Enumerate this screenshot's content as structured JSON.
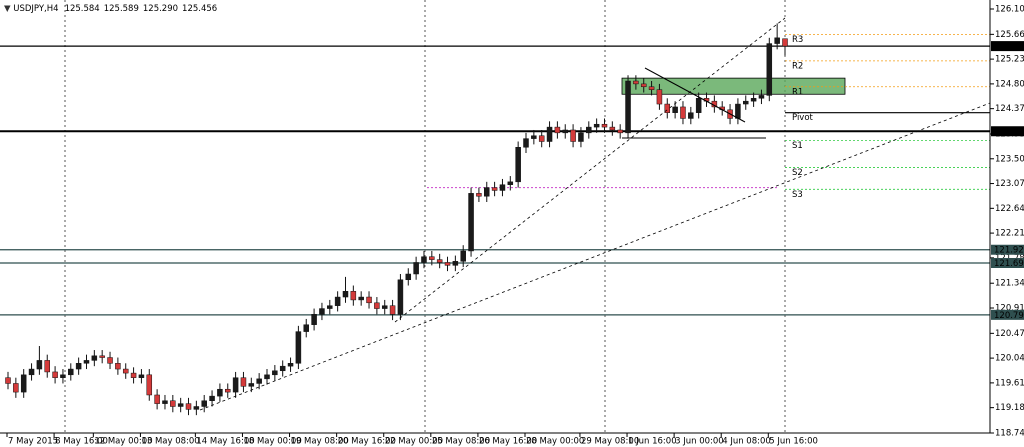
{
  "chart_data": {
    "type": "candlestick",
    "title": "USDJPY,H4",
    "quote": [
      {
        "value": 125.584,
        "label": "125.584"
      },
      {
        "value": 125.589,
        "label": "125.589"
      },
      {
        "value": 125.29,
        "label": "125.290"
      },
      {
        "value": 125.456,
        "label": "125.456"
      }
    ],
    "categories": [
      "7 May 2015",
      null,
      null,
      null,
      null,
      null,
      "8 May 16:00",
      null,
      null,
      null,
      null,
      "12 May 00:00",
      null,
      null,
      null,
      null,
      null,
      "13 May 08:00",
      null,
      null,
      null,
      null,
      null,
      null,
      "14 May 16:00",
      null,
      null,
      null,
      null,
      null,
      "18 May 00:00",
      null,
      null,
      null,
      null,
      null,
      "19 May 08:00",
      null,
      null,
      null,
      null,
      null,
      "20 May 16:00",
      null,
      null,
      null,
      null,
      null,
      "22 May 00:00",
      null,
      null,
      null,
      null,
      null,
      "25 May 08:00",
      null,
      null,
      null,
      null,
      null,
      "26 May 16:00",
      null,
      null,
      null,
      null,
      null,
      "28 May 00:00",
      null,
      null,
      null,
      null,
      null,
      null,
      "29 May 08:00",
      null,
      null,
      null,
      null,
      null,
      "1 Jun 16:00",
      null,
      null,
      null,
      null,
      null,
      "3 Jun 00:00",
      null,
      null,
      null,
      null,
      null,
      "4 Jun 08:00",
      null,
      null,
      null,
      null,
      null,
      "5 Jun 16:00",
      null,
      null
    ],
    "open": [
      119.7,
      119.6,
      119.45,
      119.75,
      119.85,
      120.0,
      119.8,
      119.7,
      119.75,
      119.85,
      119.95,
      120.0,
      120.08,
      120.05,
      119.95,
      119.85,
      119.78,
      119.7,
      119.75,
      119.4,
      119.25,
      119.3,
      119.2,
      119.25,
      119.15,
      119.2,
      119.3,
      119.38,
      119.5,
      119.45,
      119.7,
      119.55,
      119.6,
      119.68,
      119.75,
      119.82,
      119.9,
      119.95,
      120.5,
      120.62,
      120.8,
      120.9,
      120.95,
      121.1,
      121.2,
      121.05,
      121.1,
      121.0,
      120.9,
      120.95,
      120.8,
      121.4,
      121.5,
      121.7,
      121.8,
      121.75,
      121.7,
      121.65,
      121.72,
      121.9,
      122.9,
      122.85,
      123.0,
      122.95,
      123.05,
      123.1,
      123.7,
      123.85,
      123.9,
      123.8,
      124.05,
      123.95,
      124.0,
      123.8,
      123.95,
      124.05,
      124.1,
      124.05,
      124.0,
      123.95,
      124.85,
      124.8,
      124.75,
      124.7,
      124.45,
      124.3,
      124.4,
      124.2,
      124.3,
      124.55,
      124.5,
      124.4,
      124.35,
      124.2,
      124.45,
      124.5,
      124.55,
      124.6,
      125.5,
      125.584
    ],
    "high": [
      119.8,
      119.7,
      119.85,
      119.95,
      120.25,
      120.1,
      119.9,
      119.85,
      119.95,
      120.05,
      120.1,
      120.18,
      120.18,
      120.15,
      120.05,
      119.95,
      119.88,
      119.85,
      119.85,
      119.5,
      119.4,
      119.4,
      119.35,
      119.35,
      119.3,
      119.4,
      119.48,
      119.6,
      119.6,
      119.8,
      119.8,
      119.7,
      119.78,
      119.85,
      119.92,
      120.0,
      120.05,
      120.6,
      120.72,
      120.9,
      121.0,
      121.05,
      121.2,
      121.45,
      121.3,
      121.2,
      121.2,
      121.1,
      121.05,
      121.05,
      121.5,
      121.6,
      121.8,
      121.9,
      121.9,
      121.85,
      121.8,
      121.82,
      122.0,
      123.0,
      123.0,
      123.1,
      123.1,
      123.15,
      123.2,
      123.8,
      123.95,
      124.0,
      124.0,
      124.15,
      124.15,
      124.1,
      124.1,
      124.05,
      124.15,
      124.2,
      124.2,
      124.15,
      124.1,
      124.95,
      124.95,
      124.9,
      124.85,
      124.8,
      124.55,
      124.5,
      124.5,
      124.4,
      124.65,
      124.65,
      124.6,
      124.5,
      124.45,
      124.55,
      124.6,
      124.65,
      124.7,
      125.6,
      125.85,
      125.589
    ],
    "low": [
      119.5,
      119.35,
      119.35,
      119.65,
      119.75,
      119.7,
      119.6,
      119.6,
      119.65,
      119.75,
      119.85,
      119.9,
      119.95,
      119.85,
      119.75,
      119.68,
      119.6,
      119.6,
      119.3,
      119.15,
      119.15,
      119.1,
      119.1,
      119.05,
      119.05,
      119.1,
      119.2,
      119.28,
      119.35,
      119.35,
      119.45,
      119.45,
      119.5,
      119.58,
      119.65,
      119.72,
      119.8,
      119.85,
      120.4,
      120.52,
      120.7,
      120.8,
      120.85,
      121.0,
      120.95,
      120.95,
      120.9,
      120.8,
      120.8,
      120.7,
      120.7,
      121.3,
      121.4,
      121.6,
      121.65,
      121.6,
      121.55,
      121.55,
      121.62,
      121.8,
      122.75,
      122.75,
      122.85,
      122.85,
      122.95,
      123.0,
      123.6,
      123.75,
      123.7,
      123.7,
      123.85,
      123.85,
      123.7,
      123.7,
      123.85,
      123.95,
      123.95,
      123.9,
      123.85,
      123.85,
      124.7,
      124.65,
      124.6,
      124.35,
      124.2,
      124.2,
      124.1,
      124.1,
      124.2,
      124.4,
      124.3,
      124.25,
      124.1,
      124.1,
      124.35,
      124.4,
      124.45,
      124.5,
      125.4,
      125.29
    ],
    "close": [
      119.6,
      119.45,
      119.75,
      119.85,
      120.0,
      119.8,
      119.7,
      119.75,
      119.85,
      119.95,
      120.0,
      120.08,
      120.05,
      119.95,
      119.85,
      119.78,
      119.7,
      119.75,
      119.4,
      119.25,
      119.3,
      119.2,
      119.25,
      119.15,
      119.2,
      119.3,
      119.38,
      119.5,
      119.45,
      119.7,
      119.55,
      119.6,
      119.68,
      119.75,
      119.82,
      119.9,
      119.95,
      120.5,
      120.62,
      120.8,
      120.9,
      120.95,
      121.1,
      121.2,
      121.05,
      121.1,
      121.0,
      120.9,
      120.95,
      120.8,
      121.4,
      121.5,
      121.7,
      121.8,
      121.75,
      121.7,
      121.65,
      121.72,
      121.9,
      122.9,
      122.85,
      123.0,
      122.95,
      123.05,
      123.1,
      123.7,
      123.85,
      123.9,
      123.8,
      124.05,
      123.95,
      124.0,
      123.8,
      123.95,
      124.05,
      124.1,
      124.05,
      124.0,
      123.95,
      124.85,
      124.8,
      124.75,
      124.7,
      124.45,
      124.3,
      124.4,
      124.2,
      124.3,
      124.55,
      124.5,
      124.4,
      124.35,
      124.2,
      124.45,
      124.5,
      124.55,
      124.6,
      125.5,
      125.6,
      125.456
    ],
    "up_color": "#1a1a1a",
    "down_color": "#d43a3a",
    "ylim": [
      118.74,
      126.1
    ],
    "yticks": [
      {
        "value": 126.1,
        "label": "126.100"
      },
      {
        "value": 125.66,
        "label": "125.660"
      },
      {
        "value": 125.23,
        "label": "125.230"
      },
      {
        "value": 124.8,
        "label": "124.800"
      },
      {
        "value": 124.37,
        "label": "124.370"
      },
      {
        "value": 123.93,
        "label": "123.930"
      },
      {
        "value": 123.5,
        "label": "123.500"
      },
      {
        "value": 123.07,
        "label": "123.070"
      },
      {
        "value": 122.64,
        "label": "122.640"
      },
      {
        "value": 122.21,
        "label": "122.210"
      },
      {
        "value": 121.78,
        "label": "121.780"
      },
      {
        "value": 121.34,
        "label": "121.340"
      },
      {
        "value": 120.91,
        "label": "120.910"
      },
      {
        "value": 120.47,
        "label": "120.470"
      },
      {
        "value": 120.04,
        "label": "120.040"
      },
      {
        "value": 119.61,
        "label": "119.610"
      },
      {
        "value": 119.18,
        "label": "119.180"
      },
      {
        "value": 118.74,
        "label": "118.740"
      }
    ],
    "hlines": [
      {
        "value": 125.456,
        "color": "#000000"
      },
      {
        "value": 123.978,
        "color": "#000000"
      },
      {
        "value": 121.921,
        "color": "#2f4f4f"
      },
      {
        "value": 121.691,
        "color": "#2f4f4f"
      },
      {
        "value": 120.791,
        "color": "#2f4f4f"
      }
    ],
    "pivots": [
      {
        "name": "R3",
        "value": 125.66,
        "color": "#f39c12"
      },
      {
        "name": "R2",
        "value": 125.2,
        "color": "#f39c12"
      },
      {
        "name": "R1",
        "value": 124.75,
        "color": "#f39c12"
      },
      {
        "name": "Pivot",
        "value": 124.3,
        "color": "#000000"
      },
      {
        "name": "S1",
        "value": 123.82,
        "color": "#2ecc40"
      },
      {
        "name": "S2",
        "value": 123.35,
        "color": "#2ecc40"
      },
      {
        "name": "S3",
        "value": 122.97,
        "color": "#2ecc40"
      }
    ],
    "zone": {
      "ylim": [
        124.62,
        124.9
      ],
      "color": "#5aa85a"
    },
    "level_line": {
      "value": 123.0,
      "color": "#cc44cc"
    }
  }
}
